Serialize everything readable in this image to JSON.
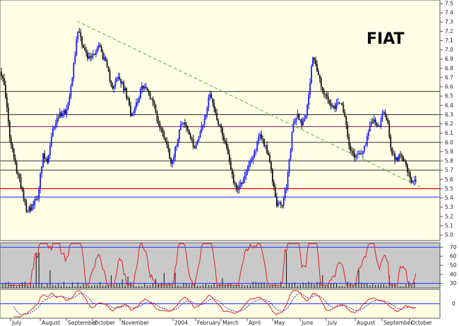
{
  "chart_data": [
    {
      "type": "candlestick",
      "title": "FIAT",
      "ylim": [
        5.0,
        7.5
      ],
      "y_ticks": [
        "7.5",
        "7.4",
        "7.3",
        "7.2",
        "7.1",
        "7.0",
        "6.9",
        "6.8",
        "6.7",
        "6.6",
        "6.5",
        "6.4",
        "6.3",
        "6.2",
        "6.1",
        "6.0",
        "5.9",
        "5.8",
        "5.7",
        "5.6",
        "5.5",
        "5.4",
        "5.3",
        "5.2",
        "5.1",
        "5.0"
      ],
      "months": [
        "July",
        "August",
        "September",
        "October",
        "November",
        "2004",
        "February",
        "March",
        "April",
        "May",
        "June",
        "July",
        "August",
        "September",
        "October"
      ],
      "horizontal_levels": [
        {
          "y": 6.55,
          "color": "#303030"
        },
        {
          "y": 6.3,
          "color": "#303030"
        },
        {
          "y": 6.17,
          "color": "#7a1f5a"
        },
        {
          "y": 6.0,
          "color": "#303030"
        },
        {
          "y": 5.8,
          "color": "#303030"
        },
        {
          "y": 5.7,
          "color": "#303030"
        },
        {
          "y": 5.5,
          "color": "#e00000"
        },
        {
          "y": 5.41,
          "color": "#1020ff"
        }
      ],
      "trendline": {
        "from": {
          "x": 0.175,
          "y": 7.31
        },
        "to": {
          "x": 0.955,
          "y": 5.52
        },
        "color": "#66bb44",
        "style": "dashed"
      },
      "anchors": [
        {
          "x": 0.0,
          "y": 6.8
        },
        {
          "x": 0.012,
          "y": 6.55
        },
        {
          "x": 0.022,
          "y": 6.05
        },
        {
          "x": 0.035,
          "y": 5.75
        },
        {
          "x": 0.05,
          "y": 5.5
        },
        {
          "x": 0.06,
          "y": 5.28
        },
        {
          "x": 0.072,
          "y": 5.3
        },
        {
          "x": 0.085,
          "y": 5.4
        },
        {
          "x": 0.098,
          "y": 5.85
        },
        {
          "x": 0.108,
          "y": 5.78
        },
        {
          "x": 0.122,
          "y": 6.18
        },
        {
          "x": 0.135,
          "y": 6.3
        },
        {
          "x": 0.152,
          "y": 6.35
        },
        {
          "x": 0.165,
          "y": 6.75
        },
        {
          "x": 0.178,
          "y": 7.25
        },
        {
          "x": 0.188,
          "y": 7.05
        },
        {
          "x": 0.2,
          "y": 6.9
        },
        {
          "x": 0.212,
          "y": 6.95
        },
        {
          "x": 0.225,
          "y": 7.05
        },
        {
          "x": 0.24,
          "y": 6.85
        },
        {
          "x": 0.255,
          "y": 6.6
        },
        {
          "x": 0.27,
          "y": 6.7
        },
        {
          "x": 0.285,
          "y": 6.55
        },
        {
          "x": 0.298,
          "y": 6.3
        },
        {
          "x": 0.312,
          "y": 6.45
        },
        {
          "x": 0.325,
          "y": 6.62
        },
        {
          "x": 0.335,
          "y": 6.55
        },
        {
          "x": 0.348,
          "y": 6.45
        },
        {
          "x": 0.36,
          "y": 6.2
        },
        {
          "x": 0.375,
          "y": 6.05
        },
        {
          "x": 0.39,
          "y": 5.78
        },
        {
          "x": 0.4,
          "y": 5.95
        },
        {
          "x": 0.412,
          "y": 6.25
        },
        {
          "x": 0.425,
          "y": 6.15
        },
        {
          "x": 0.44,
          "y": 5.95
        },
        {
          "x": 0.452,
          "y": 6.05
        },
        {
          "x": 0.465,
          "y": 6.25
        },
        {
          "x": 0.478,
          "y": 6.55
        },
        {
          "x": 0.49,
          "y": 6.3
        },
        {
          "x": 0.502,
          "y": 6.15
        },
        {
          "x": 0.515,
          "y": 5.95
        },
        {
          "x": 0.525,
          "y": 5.72
        },
        {
          "x": 0.535,
          "y": 5.5
        },
        {
          "x": 0.548,
          "y": 5.55
        },
        {
          "x": 0.56,
          "y": 5.7
        },
        {
          "x": 0.575,
          "y": 5.82
        },
        {
          "x": 0.59,
          "y": 6.1
        },
        {
          "x": 0.605,
          "y": 5.95
        },
        {
          "x": 0.615,
          "y": 5.72
        },
        {
          "x": 0.628,
          "y": 5.35
        },
        {
          "x": 0.64,
          "y": 5.3
        },
        {
          "x": 0.652,
          "y": 5.55
        },
        {
          "x": 0.665,
          "y": 6.15
        },
        {
          "x": 0.675,
          "y": 6.3
        },
        {
          "x": 0.688,
          "y": 6.2
        },
        {
          "x": 0.7,
          "y": 6.4
        },
        {
          "x": 0.708,
          "y": 6.85
        },
        {
          "x": 0.712,
          "y": 6.95
        },
        {
          "x": 0.722,
          "y": 6.75
        },
        {
          "x": 0.735,
          "y": 6.55
        },
        {
          "x": 0.748,
          "y": 6.42
        },
        {
          "x": 0.76,
          "y": 6.35
        },
        {
          "x": 0.772,
          "y": 6.45
        },
        {
          "x": 0.785,
          "y": 6.25
        },
        {
          "x": 0.795,
          "y": 5.95
        },
        {
          "x": 0.808,
          "y": 5.85
        },
        {
          "x": 0.82,
          "y": 5.9
        },
        {
          "x": 0.832,
          "y": 5.98
        },
        {
          "x": 0.842,
          "y": 6.2
        },
        {
          "x": 0.852,
          "y": 6.25
        },
        {
          "x": 0.862,
          "y": 6.15
        },
        {
          "x": 0.872,
          "y": 6.35
        },
        {
          "x": 0.88,
          "y": 6.25
        },
        {
          "x": 0.89,
          "y": 5.9
        },
        {
          "x": 0.902,
          "y": 5.8
        },
        {
          "x": 0.912,
          "y": 5.9
        },
        {
          "x": 0.922,
          "y": 5.75
        },
        {
          "x": 0.935,
          "y": 5.55
        },
        {
          "x": 0.945,
          "y": 5.58
        }
      ]
    },
    {
      "type": "line",
      "name": "oscillator",
      "y_ticks": [
        "70",
        "60",
        "50",
        "40",
        "30"
      ],
      "ylim": [
        25,
        75
      ],
      "levels": [
        {
          "y": 70,
          "color": "#2030ff"
        },
        {
          "y": 30,
          "color": "#2030ff"
        }
      ]
    },
    {
      "type": "line",
      "name": "momentum",
      "y_ticks": [
        "0"
      ],
      "levels": [
        {
          "y": 0,
          "color": "#2030ff"
        }
      ]
    }
  ],
  "colors": {
    "plot_bg": "#ffffe6",
    "frame": "#555555",
    "up_candle": "#1a1aff",
    "down_candle": "#111111",
    "osc_bg": "#c9c9c9",
    "osc_line": "#dd2222",
    "volume": "#111111",
    "momentum_line": "#dd2222",
    "momentum_signal": "#2222dd"
  }
}
